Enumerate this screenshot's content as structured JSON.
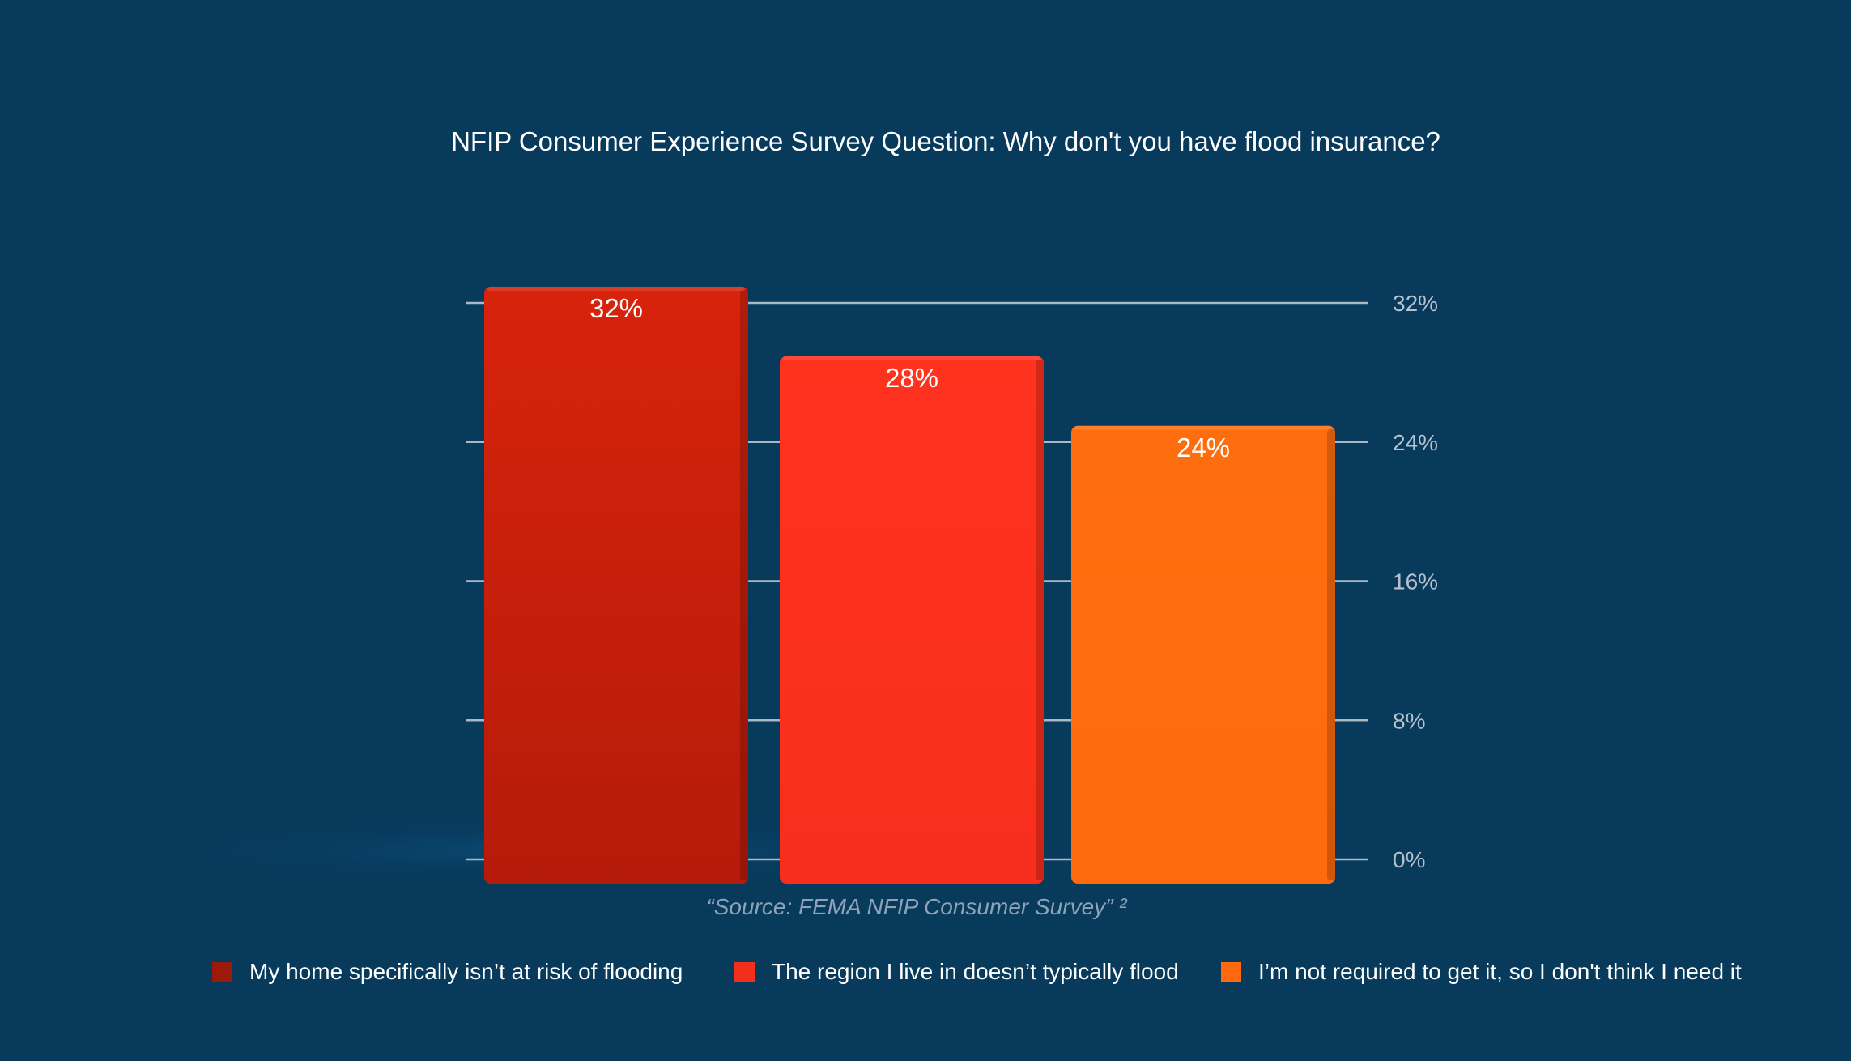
{
  "chart_data": {
    "type": "bar",
    "title": "NFIP Consumer Experience Survey Question: Why don't you have flood insurance?",
    "source": "“Source: FEMA NFIP Consumer Survey” ²",
    "categories": [
      "My home specifically isn’t at risk of flooding",
      "The region I live in doesn’t typically flood",
      "I’m not required to get it, so I don't think I need it"
    ],
    "values": [
      32,
      28,
      24
    ],
    "data_labels": [
      "32%",
      "28%",
      "24%"
    ],
    "colors": [
      "#c41f0c",
      "#fc2f1c",
      "#ff6c0c"
    ],
    "legend_colors": [
      "#9b1a0a",
      "#f02f1c",
      "#ff6a10"
    ],
    "yaxis": {
      "ticks": [
        0,
        8,
        16,
        24,
        32
      ],
      "tick_labels": [
        "0%",
        "8%",
        "16%",
        "24%",
        "32%"
      ],
      "position": "right"
    },
    "ylim": [
      0,
      32
    ],
    "grid": true,
    "legend_position": "bottom"
  }
}
